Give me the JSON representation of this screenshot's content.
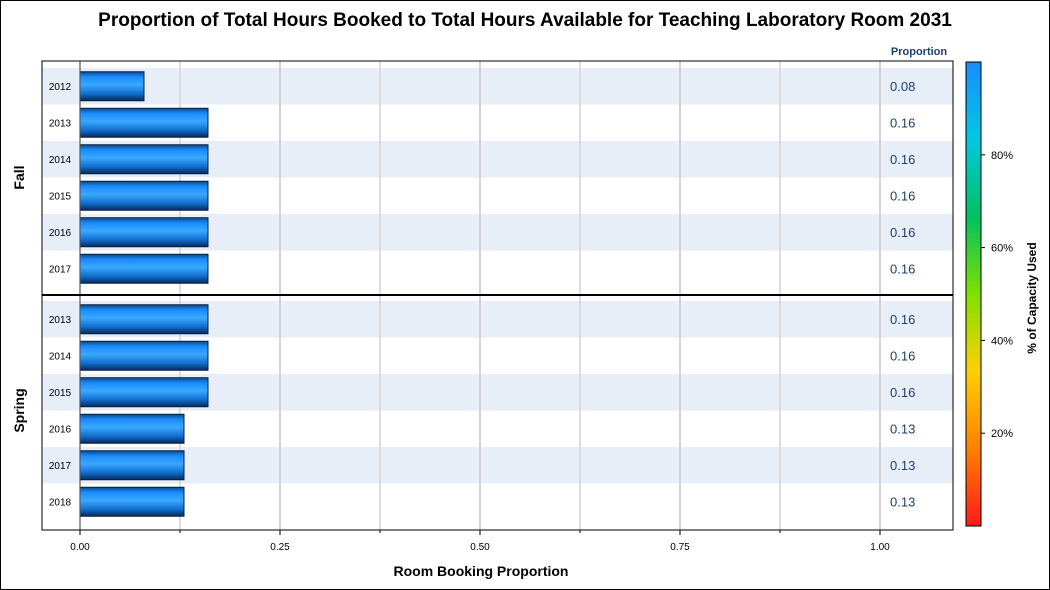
{
  "chart_data": {
    "type": "bar",
    "orientation": "horizontal",
    "title": "Proportion of Total Hours Booked to Total Hours Available for Teaching Laboratory Room 2031",
    "xlabel": "Room Booking Proportion",
    "xlim": [
      0,
      1.0
    ],
    "xticks": [
      "0.00",
      "0.25",
      "0.50",
      "0.75",
      "1.00"
    ],
    "value_column_header": "Proportion",
    "grid": true,
    "panels": [
      {
        "name": "Fall",
        "categories": [
          "2012",
          "2013",
          "2014",
          "2015",
          "2016",
          "2017"
        ],
        "values": [
          0.08,
          0.16,
          0.16,
          0.16,
          0.16,
          0.16
        ],
        "value_labels": [
          "0.08",
          "0.16",
          "0.16",
          "0.16",
          "0.16",
          "0.16"
        ]
      },
      {
        "name": "Spring",
        "categories": [
          "2013",
          "2014",
          "2015",
          "2016",
          "2017",
          "2018"
        ],
        "values": [
          0.16,
          0.16,
          0.16,
          0.13,
          0.13,
          0.13
        ],
        "value_labels": [
          "0.16",
          "0.16",
          "0.16",
          "0.13",
          "0.13",
          "0.13"
        ]
      }
    ],
    "colorbar": {
      "label": "% of Capacity Used",
      "ticks": [
        "20%",
        "40%",
        "60%",
        "80%"
      ],
      "tick_values": [
        20,
        40,
        60,
        80
      ],
      "range": [
        0,
        100
      ],
      "colors": [
        "#ff1a1a",
        "#ff8000",
        "#ffd000",
        "#80e000",
        "#00c060",
        "#00c8e0",
        "#1a8cff"
      ]
    },
    "bar_color": "#1a8cff",
    "band_color": "#e8eef8"
  }
}
